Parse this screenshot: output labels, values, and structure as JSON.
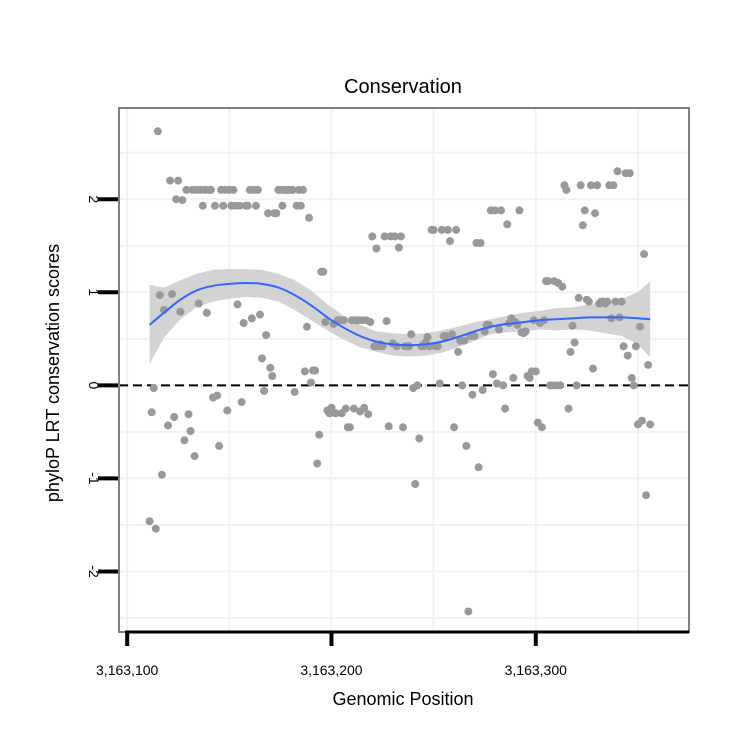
{
  "chart_data": {
    "type": "scatter",
    "title": "Conservation",
    "xlabel": "Genomic Position",
    "ylabel": "phyloP LRT conservation scores",
    "xlim": [
      3163096,
      3163375
    ],
    "ylim": [
      -2.65,
      2.98
    ],
    "x_ticks": [
      {
        "value": 3163100,
        "label": "3,163,100"
      },
      {
        "value": 3163200,
        "label": "3,163,200"
      },
      {
        "value": 3163300,
        "label": "3,163,300"
      }
    ],
    "y_ticks": [
      {
        "value": -2,
        "label": "-2"
      },
      {
        "value": -1,
        "label": "-1"
      },
      {
        "value": 0,
        "label": "0"
      },
      {
        "value": 1,
        "label": "1"
      },
      {
        "value": 2,
        "label": "2"
      }
    ],
    "reference_line": {
      "y": 0,
      "style": "dashed"
    },
    "grid": true,
    "colors": {
      "points": "#999999",
      "smooth": "#3366ff",
      "band": "#d3d3d3",
      "panel_border": "#808080"
    },
    "points": [
      [
        3163111,
        -1.46
      ],
      [
        3163112,
        -0.29
      ],
      [
        3163113,
        -0.03
      ],
      [
        3163114,
        -1.54
      ],
      [
        3163115,
        2.73
      ],
      [
        3163116,
        0.97
      ],
      [
        3163117,
        -0.96
      ],
      [
        3163118,
        0.81
      ],
      [
        3163120,
        -0.43
      ],
      [
        3163121,
        2.2
      ],
      [
        3163122,
        0.98
      ],
      [
        3163123,
        -0.34
      ],
      [
        3163124,
        2.0
      ],
      [
        3163125,
        2.2
      ],
      [
        3163126,
        0.79
      ],
      [
        3163127,
        1.99
      ],
      [
        3163128,
        -0.59
      ],
      [
        3163129,
        2.1
      ],
      [
        3163130,
        -0.31
      ],
      [
        3163131,
        -0.49
      ],
      [
        3163132,
        2.1
      ],
      [
        3163133,
        -0.76
      ],
      [
        3163134,
        2.1
      ],
      [
        3163135,
        0.88
      ],
      [
        3163136,
        2.1
      ],
      [
        3163137,
        1.93
      ],
      [
        3163138,
        2.1
      ],
      [
        3163139,
        0.78
      ],
      [
        3163140,
        2.1
      ],
      [
        3163141,
        2.1
      ],
      [
        3163142,
        -0.13
      ],
      [
        3163143,
        1.93
      ],
      [
        3163144,
        -0.11
      ],
      [
        3163145,
        -0.65
      ],
      [
        3163146,
        2.1
      ],
      [
        3163147,
        1.93
      ],
      [
        3163148,
        2.1
      ],
      [
        3163149,
        -0.27
      ],
      [
        3163150,
        2.1
      ],
      [
        3163151,
        1.93
      ],
      [
        3163152,
        2.1
      ],
      [
        3163153,
        1.93
      ],
      [
        3163154,
        0.87
      ],
      [
        3163155,
        1.93
      ],
      [
        3163156,
        -0.18
      ],
      [
        3163157,
        0.67
      ],
      [
        3163158,
        1.93
      ],
      [
        3163159,
        1.93
      ],
      [
        3163160,
        2.1
      ],
      [
        3163161,
        0.72
      ],
      [
        3163162,
        2.1
      ],
      [
        3163163,
        1.93
      ],
      [
        3163164,
        2.1
      ],
      [
        3163165,
        0.76
      ],
      [
        3163166,
        0.29
      ],
      [
        3163167,
        -0.06
      ],
      [
        3163168,
        0.54
      ],
      [
        3163169,
        1.85
      ],
      [
        3163170,
        0.19
      ],
      [
        3163171,
        0.1
      ],
      [
        3163172,
        1.85
      ],
      [
        3163173,
        1.85
      ],
      [
        3163174,
        2.1
      ],
      [
        3163175,
        2.1
      ],
      [
        3163176,
        1.93
      ],
      [
        3163177,
        2.1
      ],
      [
        3163178,
        2.1
      ],
      [
        3163179,
        2.1
      ],
      [
        3163180,
        2.1
      ],
      [
        3163181,
        2.1
      ],
      [
        3163182,
        -0.07
      ],
      [
        3163183,
        1.93
      ],
      [
        3163184,
        2.1
      ],
      [
        3163185,
        1.93
      ],
      [
        3163186,
        2.1
      ],
      [
        3163187,
        0.15
      ],
      [
        3163188,
        0.63
      ],
      [
        3163189,
        1.8
      ],
      [
        3163190,
        0.03
      ],
      [
        3163191,
        0.16
      ],
      [
        3163192,
        0.16
      ],
      [
        3163193,
        -0.84
      ],
      [
        3163194,
        -0.53
      ],
      [
        3163195,
        1.22
      ],
      [
        3163196,
        1.22
      ],
      [
        3163197,
        0.68
      ],
      [
        3163198,
        -0.27
      ],
      [
        3163199,
        -0.3
      ],
      [
        3163200,
        -0.24
      ],
      [
        3163201,
        0.66
      ],
      [
        3163202,
        -0.3
      ],
      [
        3163203,
        0.7
      ],
      [
        3163204,
        0.7
      ],
      [
        3163205,
        -0.3
      ],
      [
        3163206,
        0.7
      ],
      [
        3163207,
        -0.25
      ],
      [
        3163208,
        -0.45
      ],
      [
        3163209,
        -0.45
      ],
      [
        3163210,
        0.7
      ],
      [
        3163211,
        -0.25
      ],
      [
        3163212,
        0.7
      ],
      [
        3163213,
        0.7
      ],
      [
        3163214,
        -0.28
      ],
      [
        3163215,
        0.7
      ],
      [
        3163216,
        -0.24
      ],
      [
        3163217,
        0.7
      ],
      [
        3163218,
        -0.31
      ],
      [
        3163219,
        0.68
      ],
      [
        3163220,
        1.6
      ],
      [
        3163221,
        0.42
      ],
      [
        3163222,
        1.47
      ],
      [
        3163223,
        0.42
      ],
      [
        3163224,
        0.44
      ],
      [
        3163225,
        0.42
      ],
      [
        3163226,
        1.6
      ],
      [
        3163227,
        0.69
      ],
      [
        3163228,
        -0.44
      ],
      [
        3163229,
        1.6
      ],
      [
        3163230,
        0.45
      ],
      [
        3163231,
        1.6
      ],
      [
        3163232,
        0.42
      ],
      [
        3163233,
        1.48
      ],
      [
        3163234,
        1.6
      ],
      [
        3163235,
        -0.45
      ],
      [
        3163236,
        0.42
      ],
      [
        3163237,
        0.42
      ],
      [
        3163238,
        0.42
      ],
      [
        3163239,
        0.55
      ],
      [
        3163240,
        -0.03
      ],
      [
        3163241,
        -1.06
      ],
      [
        3163242,
        0.0
      ],
      [
        3163243,
        -0.57
      ],
      [
        3163244,
        0.42
      ],
      [
        3163245,
        0.42
      ],
      [
        3163246,
        0.46
      ],
      [
        3163247,
        0.52
      ],
      [
        3163248,
        0.42
      ],
      [
        3163249,
        1.67
      ],
      [
        3163250,
        1.67
      ],
      [
        3163251,
        0.42
      ],
      [
        3163252,
        0.42
      ],
      [
        3163253,
        0.02
      ],
      [
        3163254,
        1.67
      ],
      [
        3163255,
        0.53
      ],
      [
        3163256,
        0.53
      ],
      [
        3163257,
        1.67
      ],
      [
        3163258,
        1.55
      ],
      [
        3163259,
        0.55
      ],
      [
        3163260,
        -0.45
      ],
      [
        3163261,
        1.67
      ],
      [
        3163262,
        0.36
      ],
      [
        3163263,
        0.48
      ],
      [
        3163264,
        0.0
      ],
      [
        3163265,
        0.48
      ],
      [
        3163266,
        -0.65
      ],
      [
        3163267,
        -2.43
      ],
      [
        3163268,
        0.53
      ],
      [
        3163269,
        -0.1
      ],
      [
        3163270,
        0.53
      ],
      [
        3163271,
        1.53
      ],
      [
        3163272,
        -0.88
      ],
      [
        3163273,
        1.53
      ],
      [
        3163274,
        -0.05
      ],
      [
        3163275,
        0.58
      ],
      [
        3163276,
        0.65
      ],
      [
        3163277,
        0.65
      ],
      [
        3163278,
        1.88
      ],
      [
        3163279,
        0.12
      ],
      [
        3163280,
        1.88
      ],
      [
        3163281,
        0.02
      ],
      [
        3163282,
        0.6
      ],
      [
        3163283,
        1.88
      ],
      [
        3163284,
        0.0
      ],
      [
        3163285,
        -0.25
      ],
      [
        3163286,
        1.73
      ],
      [
        3163287,
        0.67
      ],
      [
        3163288,
        0.72
      ],
      [
        3163289,
        0.08
      ],
      [
        3163290,
        0.68
      ],
      [
        3163291,
        0.65
      ],
      [
        3163292,
        1.88
      ],
      [
        3163293,
        0.57
      ],
      [
        3163294,
        0.56
      ],
      [
        3163295,
        0.58
      ],
      [
        3163296,
        0.1
      ],
      [
        3163297,
        0.08
      ],
      [
        3163298,
        0.15
      ],
      [
        3163299,
        0.7
      ],
      [
        3163300,
        0.15
      ],
      [
        3163301,
        -0.4
      ],
      [
        3163302,
        0.67
      ],
      [
        3163303,
        -0.45
      ],
      [
        3163304,
        0.7
      ],
      [
        3163305,
        1.12
      ],
      [
        3163306,
        1.12
      ],
      [
        3163307,
        0.0
      ],
      [
        3163308,
        0.0
      ],
      [
        3163309,
        1.12
      ],
      [
        3163310,
        0.0
      ],
      [
        3163311,
        1.1
      ],
      [
        3163312,
        0.0
      ],
      [
        3163313,
        1.06
      ],
      [
        3163314,
        2.15
      ],
      [
        3163315,
        2.1
      ],
      [
        3163316,
        -0.25
      ],
      [
        3163317,
        0.36
      ],
      [
        3163318,
        0.64
      ],
      [
        3163319,
        0.46
      ],
      [
        3163320,
        0.0
      ],
      [
        3163321,
        0.94
      ],
      [
        3163322,
        2.15
      ],
      [
        3163323,
        1.72
      ],
      [
        3163324,
        1.88
      ],
      [
        3163325,
        0.92
      ],
      [
        3163326,
        0.9
      ],
      [
        3163327,
        2.15
      ],
      [
        3163328,
        0.18
      ],
      [
        3163329,
        1.85
      ],
      [
        3163330,
        2.15
      ],
      [
        3163331,
        0.88
      ],
      [
        3163332,
        0.9
      ],
      [
        3163333,
        0.9
      ],
      [
        3163334,
        0.88
      ],
      [
        3163335,
        0.9
      ],
      [
        3163336,
        2.15
      ],
      [
        3163337,
        0.72
      ],
      [
        3163338,
        2.15
      ],
      [
        3163339,
        0.9
      ],
      [
        3163340,
        2.3
      ],
      [
        3163341,
        0.73
      ],
      [
        3163342,
        0.9
      ],
      [
        3163343,
        0.42
      ],
      [
        3163344,
        2.28
      ],
      [
        3163345,
        0.32
      ],
      [
        3163346,
        2.28
      ],
      [
        3163347,
        0.08
      ],
      [
        3163348,
        0.0
      ],
      [
        3163349,
        0.42
      ],
      [
        3163350,
        -0.42
      ],
      [
        3163351,
        0.63
      ],
      [
        3163352,
        -0.38
      ],
      [
        3163353,
        1.41
      ],
      [
        3163354,
        -1.18
      ],
      [
        3163355,
        0.22
      ],
      [
        3163356,
        -0.42
      ]
    ],
    "smooth_line": [
      [
        3163111,
        0.65
      ],
      [
        3163118,
        0.78
      ],
      [
        3163126,
        0.92
      ],
      [
        3163134,
        1.02
      ],
      [
        3163142,
        1.07
      ],
      [
        3163150,
        1.09
      ],
      [
        3163158,
        1.1
      ],
      [
        3163166,
        1.09
      ],
      [
        3163174,
        1.05
      ],
      [
        3163182,
        0.97
      ],
      [
        3163190,
        0.86
      ],
      [
        3163198,
        0.73
      ],
      [
        3163206,
        0.62
      ],
      [
        3163214,
        0.53
      ],
      [
        3163222,
        0.47
      ],
      [
        3163230,
        0.44
      ],
      [
        3163238,
        0.43
      ],
      [
        3163246,
        0.44
      ],
      [
        3163254,
        0.47
      ],
      [
        3163262,
        0.52
      ],
      [
        3163270,
        0.58
      ],
      [
        3163278,
        0.63
      ],
      [
        3163286,
        0.66
      ],
      [
        3163294,
        0.68
      ],
      [
        3163302,
        0.7
      ],
      [
        3163310,
        0.71
      ],
      [
        3163318,
        0.72
      ],
      [
        3163326,
        0.73
      ],
      [
        3163334,
        0.73
      ],
      [
        3163342,
        0.73
      ],
      [
        3163350,
        0.72
      ],
      [
        3163356,
        0.71
      ]
    ],
    "confidence_band": {
      "x": [
        3163111,
        3163118,
        3163126,
        3163134,
        3163142,
        3163150,
        3163158,
        3163166,
        3163174,
        3163182,
        3163190,
        3163198,
        3163206,
        3163214,
        3163222,
        3163230,
        3163238,
        3163246,
        3163254,
        3163262,
        3163270,
        3163278,
        3163286,
        3163294,
        3163302,
        3163310,
        3163318,
        3163326,
        3163334,
        3163342,
        3163350,
        3163356
      ],
      "upper": [
        1.08,
        1.05,
        1.13,
        1.2,
        1.24,
        1.25,
        1.25,
        1.24,
        1.2,
        1.13,
        1.02,
        0.87,
        0.75,
        0.65,
        0.58,
        0.56,
        0.55,
        0.56,
        0.59,
        0.63,
        0.68,
        0.71,
        0.75,
        0.78,
        0.8,
        0.83,
        0.84,
        0.87,
        0.9,
        0.93,
        1.0,
        1.12
      ],
      "lower": [
        0.23,
        0.51,
        0.71,
        0.84,
        0.9,
        0.93,
        0.95,
        0.94,
        0.9,
        0.81,
        0.7,
        0.59,
        0.49,
        0.41,
        0.36,
        0.32,
        0.31,
        0.32,
        0.35,
        0.41,
        0.48,
        0.55,
        0.57,
        0.58,
        0.6,
        0.59,
        0.6,
        0.59,
        0.56,
        0.53,
        0.44,
        0.3
      ]
    }
  }
}
